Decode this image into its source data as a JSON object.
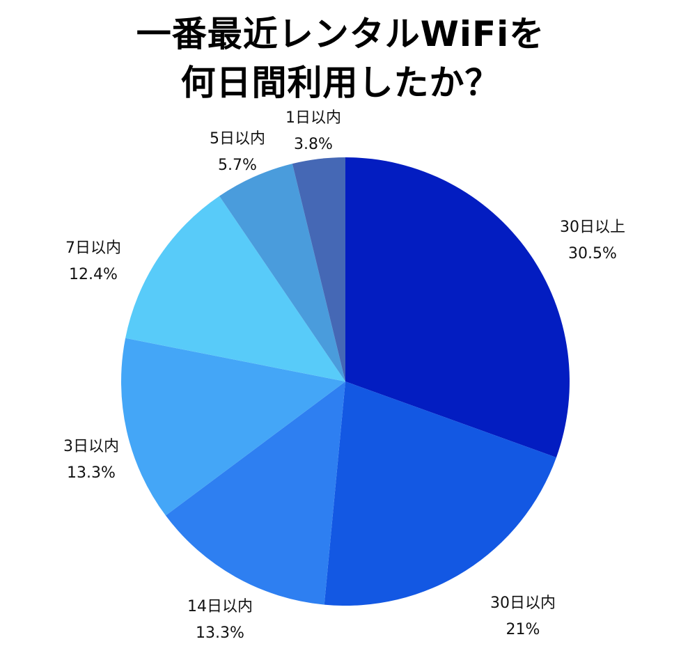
{
  "title": {
    "line1": "一番最近レンタルWiFiを",
    "line2": "何日間利用したか？"
  },
  "chart_data": {
    "type": "pie",
    "title": "一番最近レンタルWiFiを何日間利用したか？",
    "start": "top",
    "direction": "clockwise",
    "legend": "none",
    "slices": [
      {
        "name": "30日以上",
        "label": "30.5%",
        "value": 30.5,
        "color": "#031dc1"
      },
      {
        "name": "30日以内",
        "label": "21%",
        "value": 21.0,
        "color": "#1358e3"
      },
      {
        "name": "14日以内",
        "label": "13.3%",
        "value": 13.3,
        "color": "#2e7ff1"
      },
      {
        "name": "3日以内",
        "label": "13.3%",
        "value": 13.3,
        "color": "#44a6f7"
      },
      {
        "name": "7日以内",
        "label": "12.4%",
        "value": 12.4,
        "color": "#58cbf9"
      },
      {
        "name": "5日以内",
        "label": "5.7%",
        "value": 5.7,
        "color": "#4a9cdc"
      },
      {
        "name": "1日以内",
        "label": "3.8%",
        "value": 3.8,
        "color": "#4568b5"
      }
    ]
  }
}
